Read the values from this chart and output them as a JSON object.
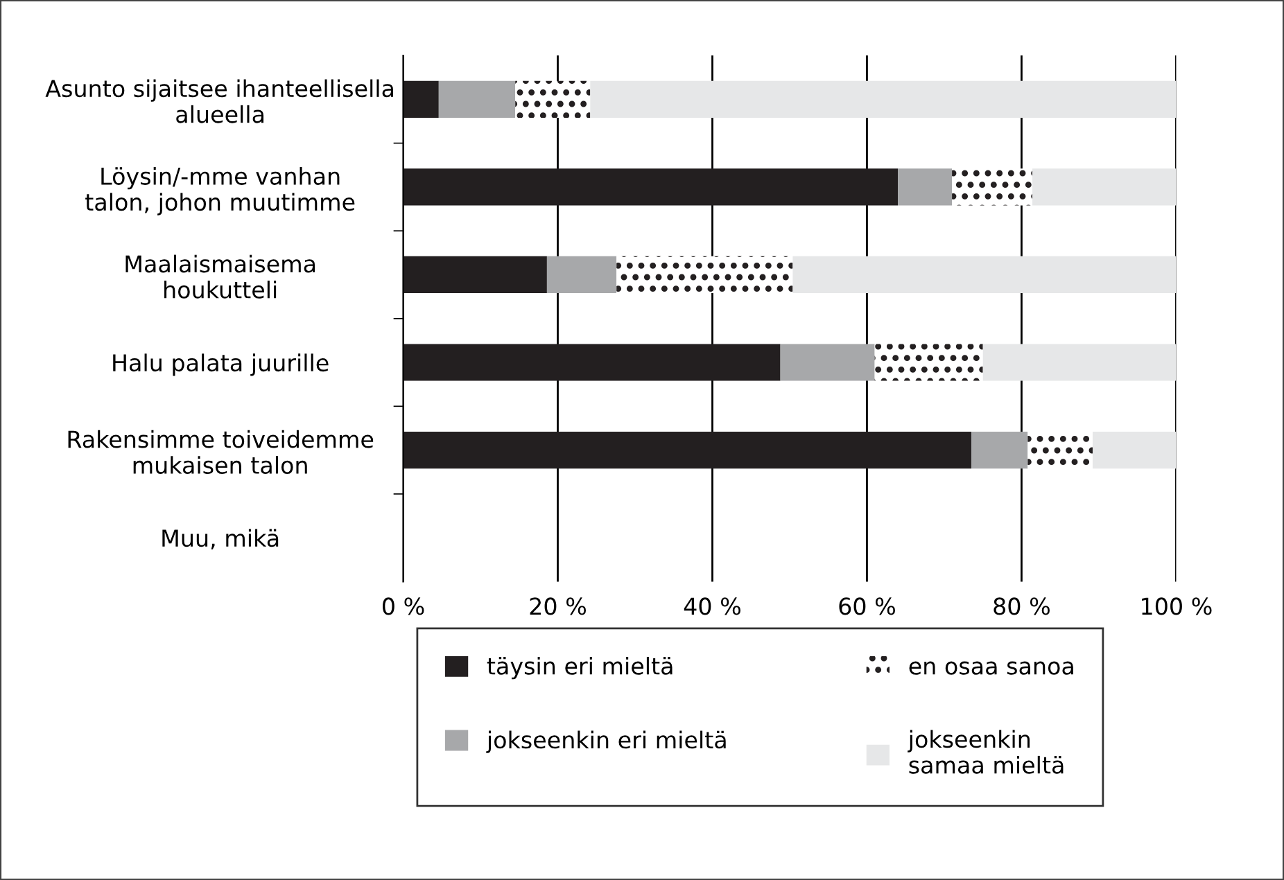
{
  "chart_data": {
    "type": "bar",
    "orientation": "horizontal",
    "stacked": true,
    "categories": [
      "Asunto sijaitsee ihanteellisella\nalueella",
      "Löysin/-mme vanhan\ntalon, johon muutimme",
      "Maalaismaisema\nhoukutteli",
      "Halu palata juurille",
      "Rakensimme toiveidemme\nmukaisen talon",
      "Muu, mikä"
    ],
    "series": [
      {
        "name": "täysin eri mieltä",
        "color": "#231f20",
        "values": [
          4.6,
          64.0,
          18.6,
          48.8,
          73.5,
          null
        ]
      },
      {
        "name": "jokseenkin eri mieltä",
        "color": "#a7a8aa",
        "values": [
          9.9,
          7.0,
          9.0,
          12.2,
          7.3,
          null
        ]
      },
      {
        "name": "en osaa sanoa",
        "color": "#ffffff",
        "values": [
          9.7,
          10.4,
          22.8,
          14.0,
          8.4,
          null
        ]
      },
      {
        "name": "jokseenkin\nsamaa mieltä",
        "color": "#e6e7e8",
        "values": [
          75.8,
          18.6,
          49.6,
          25.0,
          10.8,
          null
        ]
      }
    ],
    "xlim": [
      0,
      100
    ],
    "xticks": [
      {
        "value": 0,
        "label": "0 %"
      },
      {
        "value": 20,
        "label": "20 %"
      },
      {
        "value": 40,
        "label": "40 %"
      },
      {
        "value": 60,
        "label": "60 %"
      },
      {
        "value": 80,
        "label": "80 %"
      },
      {
        "value": 100,
        "label": "100 %"
      }
    ],
    "grid": "x",
    "legend": "bottom"
  }
}
